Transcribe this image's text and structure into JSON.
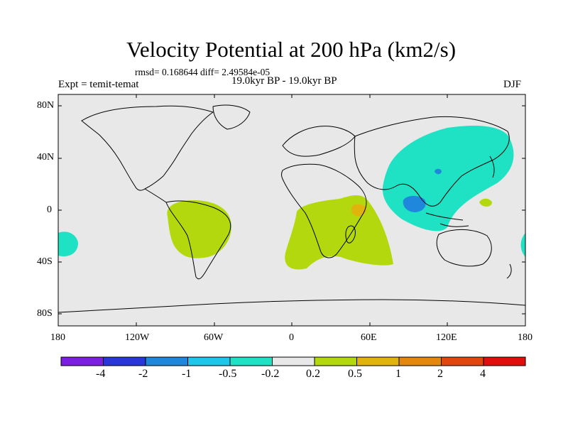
{
  "title": "Velocity Potential at 200 hPa (km2/s)",
  "stats": "rmsd= 0.168644 diff= 2.49584e-05",
  "experiment": "Expt = temit-temat",
  "period": "19.0kyr BP - 19.0kyr BP",
  "season": "DJF",
  "lat_labels": [
    "80N",
    "40N",
    "0",
    "40S",
    "80S"
  ],
  "lon_labels": [
    "180",
    "120W",
    "60W",
    "0",
    "60E",
    "120E",
    "180"
  ],
  "colorbar": {
    "labels": [
      "-4",
      "-2",
      "-1",
      "-0.5",
      "-0.2",
      "0.2",
      "0.5",
      "1",
      "2",
      "4"
    ],
    "colors": [
      "#7b1fe0",
      "#2a36d8",
      "#1f88dd",
      "#1ec6ec",
      "#1fe2c4",
      "#e8e8e8",
      "#b3d90e",
      "#e0b30d",
      "#e3880d",
      "#e0460e",
      "#e10e0e"
    ]
  },
  "map_colors": {
    "background": "#e8e8e8",
    "neg_weak": "#1fe2c4",
    "neg_mid": "#1ec6ec",
    "neg_strong": "#1f88dd",
    "pos_weak": "#b3d90e",
    "pos_mid": "#e0b30d"
  }
}
